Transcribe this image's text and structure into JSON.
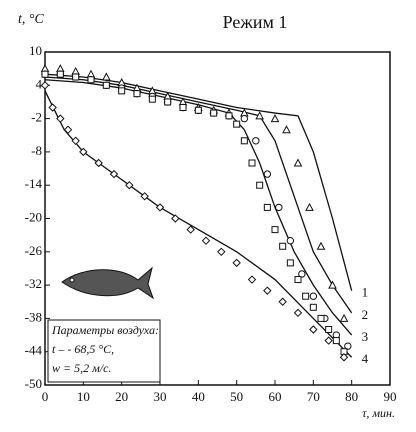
{
  "chart_data": {
    "type": "line",
    "title": "Режим 1",
    "y_label": "t, °C",
    "x_label": "τ, мин.",
    "xlim": [
      0,
      90
    ],
    "ylim": [
      -50,
      10
    ],
    "xticks": [
      0,
      10,
      20,
      30,
      40,
      50,
      60,
      70,
      80,
      90
    ],
    "yticks": [
      10,
      4,
      -2,
      -8,
      -14,
      -20,
      -26,
      -32,
      -38,
      -44,
      -50
    ],
    "color": "#111111",
    "annotation": [
      "Параметры воздуха:",
      "t – - 68,5 °C,",
      "w = 5,2 м/с."
    ],
    "series": [
      {
        "name": "1",
        "style": "line",
        "x": [
          0,
          10,
          20,
          30,
          40,
          50,
          60,
          66,
          70,
          75,
          80
        ],
        "values": [
          6,
          5.5,
          4.5,
          3,
          1.5,
          0,
          -1,
          -1.5,
          -8,
          -20,
          -33
        ]
      },
      {
        "name": "2",
        "style": "line",
        "x": [
          0,
          10,
          20,
          30,
          40,
          50,
          56,
          60,
          65,
          70,
          75,
          80
        ],
        "values": [
          5.5,
          5,
          4,
          2.5,
          1,
          -0.5,
          -1.5,
          -6,
          -16,
          -26,
          -32,
          -37
        ]
      },
      {
        "name": "3",
        "style": "line",
        "x": [
          0,
          10,
          20,
          30,
          40,
          48,
          52,
          56,
          60,
          65,
          70,
          75,
          80
        ],
        "values": [
          5,
          4.5,
          3.5,
          2,
          0.5,
          -1,
          -4,
          -10,
          -18,
          -26,
          -32,
          -37,
          -41
        ]
      },
      {
        "name": "4",
        "style": "line",
        "x": [
          0,
          5,
          10,
          20,
          30,
          40,
          50,
          60,
          70,
          80
        ],
        "values": [
          3,
          -4,
          -8,
          -13,
          -18,
          -22,
          -26,
          -31,
          -38,
          -45
        ]
      },
      {
        "style": "triangle",
        "x": [
          0,
          4,
          8,
          12,
          16,
          20,
          24,
          28,
          32,
          36,
          40,
          44,
          48,
          52,
          56,
          60,
          63,
          66,
          69,
          72,
          75,
          78
        ],
        "values": [
          7,
          7,
          6.5,
          6,
          5.5,
          4.5,
          3.5,
          3,
          2,
          1,
          0,
          -0.5,
          -1,
          -1,
          -1.5,
          -2,
          -4,
          -10,
          -18,
          -25,
          -32,
          -38
        ]
      },
      {
        "style": "circle",
        "x": [
          0,
          4,
          8,
          12,
          16,
          20,
          24,
          28,
          32,
          36,
          40,
          44,
          48,
          52,
          55,
          58,
          61,
          64,
          67,
          70,
          73,
          76,
          79
        ],
        "values": [
          6,
          6,
          5.5,
          5,
          4,
          3.5,
          2.5,
          2,
          1,
          0,
          -0.5,
          -1,
          -1.5,
          -2,
          -6,
          -12,
          -18,
          -24,
          -30,
          -34,
          -38,
          -41,
          -43
        ]
      },
      {
        "style": "square",
        "x": [
          0,
          4,
          8,
          12,
          16,
          20,
          24,
          28,
          32,
          36,
          40,
          44,
          48,
          50,
          52,
          54,
          56,
          58,
          60,
          62,
          64,
          66,
          68,
          70,
          72,
          74,
          76,
          78
        ],
        "values": [
          6,
          6,
          5.5,
          5,
          4,
          3,
          2.5,
          1.5,
          1,
          0,
          -0.5,
          -1,
          -1.5,
          -3,
          -6,
          -10,
          -14,
          -18,
          -22,
          -25,
          -28,
          -31,
          -34,
          -36,
          -38,
          -40,
          -42,
          -44
        ]
      },
      {
        "style": "diamond",
        "x": [
          0,
          2,
          4,
          6,
          8,
          10,
          14,
          18,
          22,
          26,
          30,
          34,
          38,
          42,
          46,
          50,
          54,
          58,
          62,
          66,
          70,
          74,
          78
        ],
        "values": [
          4,
          0,
          -2,
          -4,
          -6,
          -8,
          -10,
          -12,
          -14,
          -16,
          -18,
          -20,
          -22,
          -24,
          -26,
          -28,
          -31,
          -33,
          -35,
          -37,
          -40,
          -42,
          -45
        ]
      }
    ]
  }
}
